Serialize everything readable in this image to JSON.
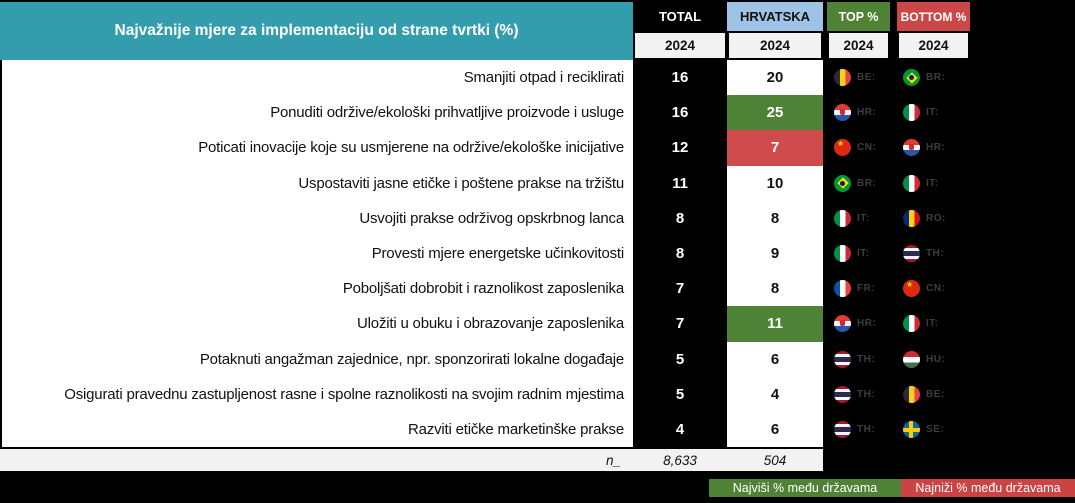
{
  "title": "Najvažnije mjere za implementaciju od strane tvrtki (%)",
  "columns": {
    "total": "TOTAL",
    "hrvatska": "HRVATSKA",
    "top": "TOP %",
    "bottom": "BOTTOM %",
    "year": "2024"
  },
  "chart_data": {
    "type": "table",
    "title": "Najvažnije mjere za implementaciju od strane tvrtki (%)",
    "column_groups": [
      "TOTAL",
      "HRVATSKA",
      "TOP %",
      "BOTTOM %"
    ],
    "year": "2024",
    "rows": [
      {
        "label": "Smanjiti otpad i reciklirati",
        "total": 16,
        "hrvatska": 20,
        "highlight": "none",
        "top_code": "BE",
        "top_label": "BE:",
        "bottom_code": "BR",
        "bottom_label": "BR:"
      },
      {
        "label": "Ponuditi održive/ekološki prihvatljive proizvode i usluge",
        "total": 16,
        "hrvatska": 25,
        "highlight": "green",
        "top_code": "HR",
        "top_label": "HR:",
        "bottom_code": "IT",
        "bottom_label": "IT:"
      },
      {
        "label": "Poticati inovacije koje su usmjerene na održive/ekološke inicijative",
        "total": 12,
        "hrvatska": 7,
        "highlight": "red",
        "top_code": "CN",
        "top_label": "CN:",
        "bottom_code": "HR",
        "bottom_label": "HR:"
      },
      {
        "label": "Uspostaviti jasne etičke i poštene prakse na tržištu",
        "total": 11,
        "hrvatska": 10,
        "highlight": "none",
        "top_code": "BR",
        "top_label": "BR:",
        "bottom_code": "IT",
        "bottom_label": "IT:"
      },
      {
        "label": "Usvojiti prakse održivog opskrbnog lanca",
        "total": 8,
        "hrvatska": 8,
        "highlight": "none",
        "top_code": "IT",
        "top_label": "IT:",
        "bottom_code": "RO",
        "bottom_label": "RO:"
      },
      {
        "label": "Provesti mjere energetske učinkovitosti",
        "total": 8,
        "hrvatska": 9,
        "highlight": "none",
        "top_code": "IT",
        "top_label": "IT:",
        "bottom_code": "TH",
        "bottom_label": "TH:"
      },
      {
        "label": "Poboljšati dobrobit i raznolikost zaposlenika",
        "total": 7,
        "hrvatska": 8,
        "highlight": "none",
        "top_code": "FR",
        "top_label": "FR:",
        "bottom_code": "CN",
        "bottom_label": "CN:"
      },
      {
        "label": "Uložiti u obuku i obrazovanje zaposlenika",
        "total": 7,
        "hrvatska": 11,
        "highlight": "green",
        "top_code": "HR",
        "top_label": "HR:",
        "bottom_code": "IT",
        "bottom_label": "IT:"
      },
      {
        "label": "Potaknuti angažman zajednice, npr. sponzorirati lokalne događaje",
        "total": 5,
        "hrvatska": 6,
        "highlight": "none",
        "top_code": "TH",
        "top_label": "TH:",
        "bottom_code": "HU",
        "bottom_label": "HU:"
      },
      {
        "label": "Osigurati pravednu zastupljenost rasne i spolne raznolikosti na svojim radnim mjestima",
        "total": 5,
        "hrvatska": 4,
        "highlight": "none",
        "top_code": "TH",
        "top_label": "TH:",
        "bottom_code": "BE",
        "bottom_label": "BE:"
      },
      {
        "label": "Razviti etičke marketinške prakse",
        "total": 4,
        "hrvatska": 6,
        "highlight": "none",
        "top_code": "TH",
        "top_label": "TH:",
        "bottom_code": "SE",
        "bottom_label": "SE:"
      }
    ],
    "footer": {
      "n_label": "n_",
      "total_n": "8,633",
      "hrvatska_n": "504"
    },
    "legend": {
      "highest": "Najviši % među državama",
      "lowest": "Najniži % među državama"
    },
    "colors": {
      "header_teal": "#339DAD",
      "hrvatska_blue": "#9DC3E6",
      "top_green": "#4F8235",
      "bottom_red": "#CB4747",
      "cell_green": "#4E8236",
      "cell_red": "#D04B4B",
      "year_gray": "#F2F2F2"
    }
  }
}
